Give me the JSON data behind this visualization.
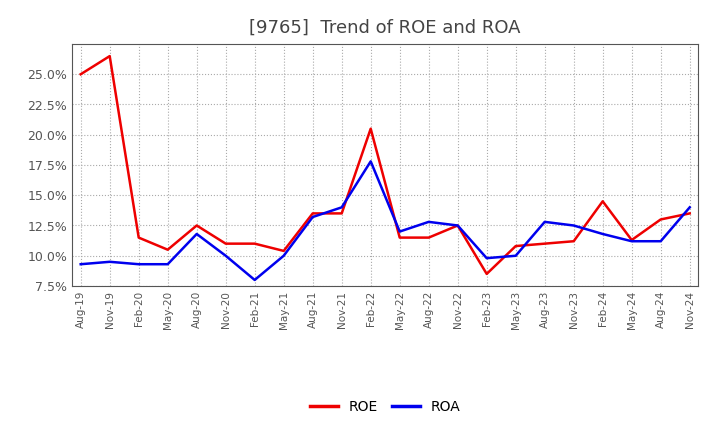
{
  "title": "[9765]  Trend of ROE and ROA",
  "x_labels": [
    "Aug-19",
    "Nov-19",
    "Feb-20",
    "May-20",
    "Aug-20",
    "Nov-20",
    "Feb-21",
    "May-21",
    "Aug-21",
    "Nov-21",
    "Feb-22",
    "May-22",
    "Aug-22",
    "Nov-22",
    "Feb-23",
    "May-23",
    "Aug-23",
    "Nov-23",
    "Feb-24",
    "May-24",
    "Aug-24",
    "Nov-24"
  ],
  "ROE": [
    25.0,
    26.5,
    11.5,
    10.5,
    12.5,
    11.0,
    11.0,
    10.4,
    13.5,
    13.5,
    20.5,
    11.5,
    11.5,
    12.5,
    8.5,
    10.8,
    11.0,
    11.2,
    14.5,
    11.3,
    13.0,
    13.5
  ],
  "ROA": [
    9.3,
    9.5,
    9.3,
    9.3,
    11.8,
    10.0,
    8.0,
    10.0,
    13.2,
    14.0,
    17.8,
    12.0,
    12.8,
    12.5,
    9.8,
    10.0,
    12.8,
    12.5,
    11.8,
    11.2,
    11.2,
    14.0
  ],
  "ROE_color": "#EE0000",
  "ROA_color": "#0000EE",
  "ylim_min": 7.5,
  "ylim_max": 27.5,
  "yticks": [
    7.5,
    10.0,
    12.5,
    15.0,
    17.5,
    20.0,
    22.5,
    25.0
  ],
  "background_color": "#FFFFFF",
  "plot_bg_color": "#FFFFFF",
  "grid_color": "#AAAAAA",
  "title_fontsize": 13,
  "tick_label_color": "#555555",
  "spine_color": "#555555",
  "legend_labels": [
    "ROE",
    "ROA"
  ]
}
